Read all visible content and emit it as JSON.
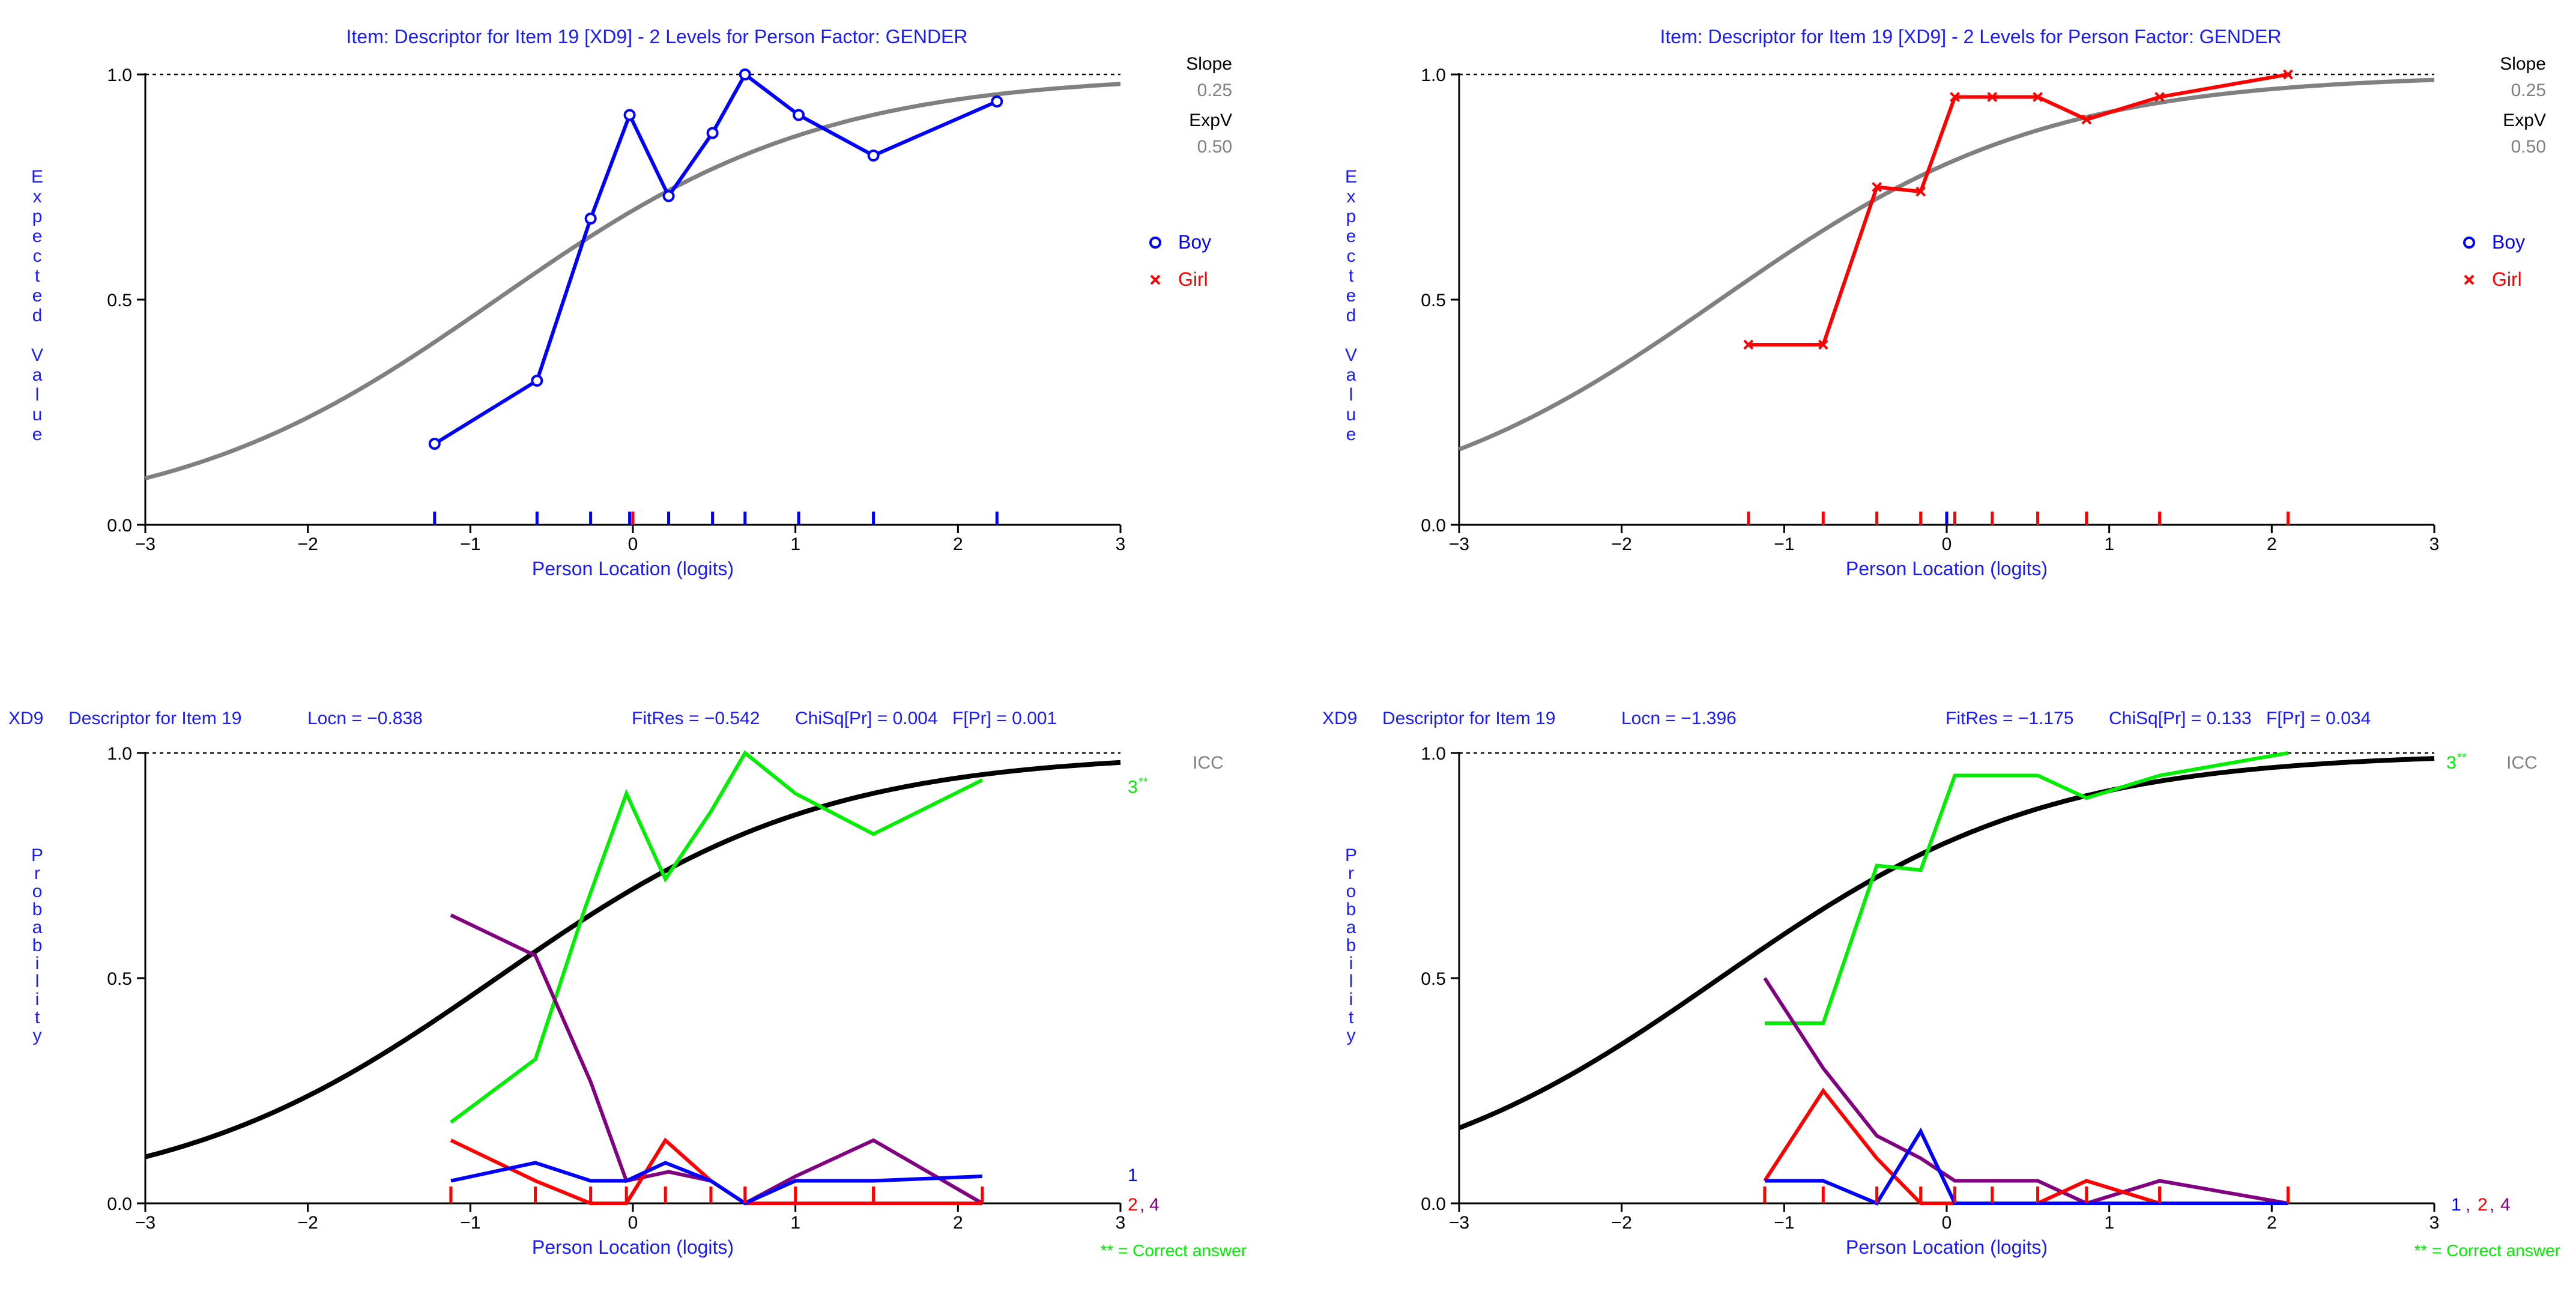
{
  "colors": {
    "blue": "#0000ff",
    "red": "#ff0000",
    "gray": "#808080",
    "black": "#000000",
    "green": "#00ee00",
    "purple": "#800080",
    "label_blue": "#1a1aff"
  },
  "chart_data": [
    {
      "type": "line",
      "title": "Item: Descriptor for Item 19 [XD9] - 2 Levels for Person Factor: GENDER",
      "xlabel": "Person Location (logits)",
      "ylabel": "Expected Value",
      "xlim": [
        -3,
        3
      ],
      "ylim": [
        0,
        1
      ],
      "xticks": [
        "−3",
        "−2",
        "−1",
        "0",
        "1",
        "2",
        "3"
      ],
      "yticks": [
        "0.0",
        "0.5",
        "1.0"
      ],
      "slope_label": "Slope",
      "slope_value": "0.25",
      "expv_label": "ExpV",
      "expv_value": "0.50",
      "legend": [
        {
          "name": "Boy",
          "marker": "o",
          "color": "#0000ff"
        },
        {
          "name": "Girl",
          "marker": "x",
          "color": "#ff0000"
        }
      ],
      "curve": {
        "name": "Expected (ICC)",
        "location": -0.838,
        "color": "#808080"
      },
      "series": [
        {
          "name": "Boy",
          "marker": "o",
          "color": "#0000ff",
          "x": [
            -1.22,
            -0.59,
            -0.26,
            -0.02,
            0.22,
            0.49,
            0.69,
            1.02,
            1.48,
            2.24
          ],
          "y": [
            0.18,
            0.32,
            0.68,
            0.91,
            0.73,
            0.87,
            1.0,
            0.91,
            0.82,
            0.94
          ]
        }
      ],
      "rug": {
        "color": "#0000ff",
        "x": [
          -1.22,
          -0.59,
          -0.26,
          -0.02,
          0.22,
          0.49,
          0.69,
          1.02,
          1.48,
          2.24
        ]
      },
      "rug2": {
        "color": "#ff0000",
        "x": [
          0.0
        ]
      }
    },
    {
      "type": "line",
      "title": "Item: Descriptor for Item 19 [XD9] - 2 Levels for Person Factor: GENDER",
      "xlabel": "Person Location (logits)",
      "ylabel": "Expected Value",
      "xlim": [
        -3,
        3
      ],
      "ylim": [
        0,
        1
      ],
      "xticks": [
        "−3",
        "−2",
        "−1",
        "0",
        "1",
        "2",
        "3"
      ],
      "yticks": [
        "0.0",
        "0.5",
        "1.0"
      ],
      "slope_label": "Slope",
      "slope_value": "0.25",
      "expv_label": "ExpV",
      "expv_value": "0.50",
      "legend": [
        {
          "name": "Boy",
          "marker": "o",
          "color": "#0000ff"
        },
        {
          "name": "Girl",
          "marker": "x",
          "color": "#ff0000"
        }
      ],
      "curve": {
        "name": "Expected (ICC)",
        "location": -1.396,
        "color": "#808080"
      },
      "series": [
        {
          "name": "Girl",
          "marker": "x",
          "color": "#ff0000",
          "x": [
            -1.22,
            -0.76,
            -0.43,
            -0.16,
            0.05,
            0.28,
            0.56,
            0.86,
            1.31,
            2.1
          ],
          "y": [
            0.4,
            0.4,
            0.75,
            0.74,
            0.95,
            0.95,
            0.95,
            0.9,
            0.95,
            1.0
          ]
        }
      ],
      "rug": {
        "color": "#ff0000",
        "x": [
          -1.22,
          -0.76,
          -0.43,
          -0.16,
          0.05,
          0.28,
          0.56,
          0.86,
          1.31,
          2.1
        ]
      },
      "rug2": {
        "color": "#0000ff",
        "x": [
          0.0
        ]
      }
    },
    {
      "type": "line",
      "header": {
        "code": "XD9",
        "item": "Descriptor for Item 19",
        "locn": "Locn = −0.838",
        "fitres": "FitRes = −0.542",
        "chisq": "ChiSq[Pr] = 0.004",
        "fpr": "F[Pr] = 0.001"
      },
      "xlabel": "Person Location (logits)",
      "ylabel": "Probability",
      "xlim": [
        -3,
        3
      ],
      "ylim": [
        0,
        1
      ],
      "xticks": [
        "−3",
        "−2",
        "−1",
        "0",
        "1",
        "2",
        "3"
      ],
      "yticks": [
        "0.0",
        "0.5",
        "1.0"
      ],
      "icc_label": "ICC",
      "correct_note": "** = Correct answer",
      "category_labels": {
        "cat3": "3",
        "stars": "**",
        "cat1": "1",
        "cat2": "2",
        "cat4": "4",
        "sep": ","
      },
      "curve": {
        "name": "ICC",
        "location": -0.838,
        "color": "#000000"
      },
      "series": [
        {
          "name": "3**",
          "color": "#00ee00",
          "x": [
            -1.12,
            -0.6,
            -0.3,
            -0.04,
            0.2,
            0.48,
            0.69,
            1.0,
            1.48,
            2.15
          ],
          "y": [
            0.18,
            0.32,
            0.65,
            0.91,
            0.72,
            0.87,
            1.0,
            0.91,
            0.82,
            0.94
          ]
        },
        {
          "name": "4",
          "color": "#800080",
          "x": [
            -1.12,
            -0.6,
            -0.26,
            -0.04,
            0.22,
            0.48,
            0.69,
            1.0,
            1.48,
            2.15
          ],
          "y": [
            0.64,
            0.55,
            0.27,
            0.05,
            0.07,
            0.05,
            0.0,
            0.06,
            0.14,
            0.0
          ]
        },
        {
          "name": "2",
          "color": "#ff0000",
          "x": [
            -1.12,
            -0.6,
            -0.26,
            -0.04,
            0.2,
            0.48,
            0.69,
            1.0,
            1.48,
            2.15
          ],
          "y": [
            0.14,
            0.05,
            0.0,
            0.0,
            0.14,
            0.05,
            0.0,
            0.0,
            0.0,
            0.0
          ]
        },
        {
          "name": "1",
          "color": "#0000ff",
          "x": [
            -1.12,
            -0.6,
            -0.26,
            -0.04,
            0.2,
            0.48,
            0.69,
            1.0,
            1.48,
            2.15
          ],
          "y": [
            0.05,
            0.09,
            0.05,
            0.05,
            0.09,
            0.05,
            0.0,
            0.05,
            0.05,
            0.06
          ]
        }
      ],
      "rug": {
        "color": "#ff0000",
        "x": [
          -1.12,
          -0.6,
          -0.26,
          -0.04,
          0.2,
          0.48,
          0.69,
          1.0,
          1.48,
          2.15
        ]
      }
    },
    {
      "type": "line",
      "header": {
        "code": "XD9",
        "item": "Descriptor for Item 19",
        "locn": "Locn = −1.396",
        "fitres": "FitRes = −1.175",
        "chisq": "ChiSq[Pr] = 0.133",
        "fpr": "F[Pr] = 0.034"
      },
      "xlabel": "Person Location (logits)",
      "ylabel": "Probability",
      "xlim": [
        -3,
        3
      ],
      "ylim": [
        0,
        1
      ],
      "xticks": [
        "−3",
        "−2",
        "−1",
        "0",
        "1",
        "2",
        "3"
      ],
      "yticks": [
        "0.0",
        "0.5",
        "1.0"
      ],
      "icc_label": "ICC",
      "correct_note": "** = Correct answer",
      "category_labels": {
        "cat3": "3",
        "stars": "**",
        "cat1": "1",
        "cat2": "2",
        "cat4": "4",
        "sep": ","
      },
      "curve": {
        "name": "ICC",
        "location": -1.396,
        "color": "#000000"
      },
      "series": [
        {
          "name": "3**",
          "color": "#00ee00",
          "x": [
            -1.12,
            -0.76,
            -0.43,
            -0.16,
            0.05,
            0.28,
            0.56,
            0.86,
            1.31,
            2.1
          ],
          "y": [
            0.4,
            0.4,
            0.75,
            0.74,
            0.95,
            0.95,
            0.95,
            0.9,
            0.95,
            1.0
          ]
        },
        {
          "name": "4",
          "color": "#800080",
          "x": [
            -1.12,
            -0.76,
            -0.43,
            -0.16,
            0.05,
            0.28,
            0.56,
            0.86,
            1.31,
            2.1
          ],
          "y": [
            0.5,
            0.3,
            0.15,
            0.1,
            0.05,
            0.05,
            0.05,
            0.0,
            0.05,
            0.0
          ]
        },
        {
          "name": "2",
          "color": "#ff0000",
          "x": [
            -1.12,
            -0.76,
            -0.43,
            -0.16,
            0.05,
            0.28,
            0.56,
            0.86,
            1.31,
            2.1
          ],
          "y": [
            0.05,
            0.25,
            0.1,
            0.0,
            0.0,
            0.0,
            0.0,
            0.05,
            0.0,
            0.0
          ]
        },
        {
          "name": "1",
          "color": "#0000ff",
          "x": [
            -1.12,
            -0.76,
            -0.43,
            -0.16,
            0.05,
            0.28,
            0.56,
            0.86,
            1.31,
            2.1
          ],
          "y": [
            0.05,
            0.05,
            0.0,
            0.16,
            0.0,
            0.0,
            0.0,
            0.0,
            0.0,
            0.0
          ]
        }
      ],
      "rug": {
        "color": "#ff0000",
        "x": [
          -1.12,
          -0.76,
          -0.43,
          -0.16,
          0.05,
          0.28,
          0.56,
          0.86,
          1.31,
          2.1
        ]
      }
    }
  ]
}
